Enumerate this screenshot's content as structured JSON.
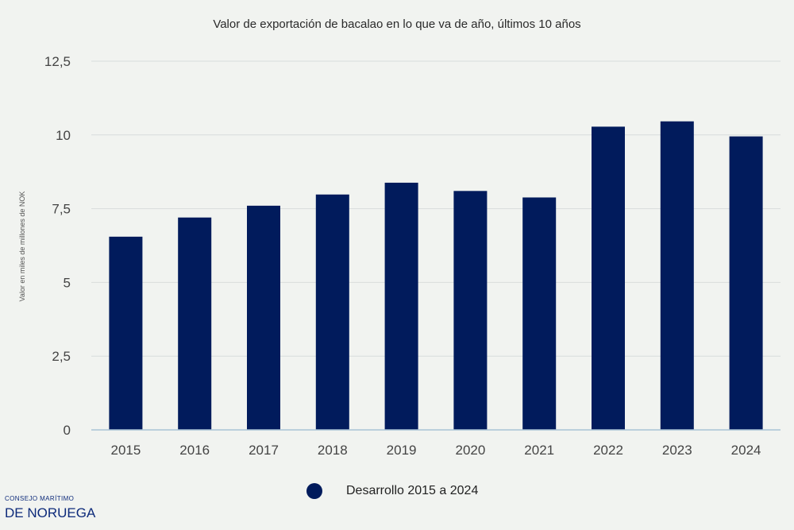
{
  "chart_data": {
    "type": "bar",
    "title": "Valor de exportación de bacalao en lo que va de año, últimos 10 años",
    "ylabel": "Valor en miles de millones de NOK",
    "xlabel": "",
    "categories": [
      "2015",
      "2016",
      "2017",
      "2018",
      "2019",
      "2020",
      "2021",
      "2022",
      "2023",
      "2024"
    ],
    "series": [
      {
        "name": "Desarrollo 2015 a 2024",
        "values": [
          6.55,
          7.2,
          7.6,
          7.98,
          8.38,
          8.1,
          7.88,
          10.28,
          10.46,
          9.95
        ]
      }
    ],
    "ylim": [
      0,
      12.5
    ],
    "yticks": [
      0,
      2.5,
      5,
      7.5,
      10,
      12.5
    ],
    "ytick_labels": [
      "0",
      "2,5",
      "5",
      "7,5",
      "10",
      "12,5"
    ],
    "grid": true,
    "legend_position": "bottom-center",
    "colors": {
      "bar": "#011b5c",
      "grid": "#d8dcdc",
      "axis": "#a9c3d6"
    }
  },
  "branding": {
    "line1": "CONSEJO MARÍTIMO",
    "line2": "DE NORUEGA"
  }
}
